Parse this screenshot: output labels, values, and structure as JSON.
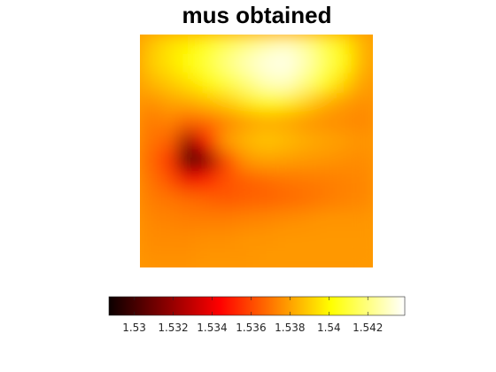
{
  "chart_data": {
    "type": "heatmap",
    "title": "mus obtained",
    "colormap": "hot",
    "axes_visible": false,
    "colorbar": {
      "location": "south",
      "clim": [
        1.5287,
        1.5439
      ],
      "ticks": [
        1.53,
        1.532,
        1.534,
        1.536,
        1.538,
        1.54,
        1.542
      ],
      "tick_labels": [
        "1.53",
        "1.532",
        "1.534",
        "1.536",
        "1.538",
        "1.54",
        "1.542"
      ]
    },
    "grid_size": [
      12,
      12
    ],
    "values": [
      [
        1.5387,
        1.5394,
        1.5398,
        1.5406,
        1.5414,
        1.542,
        1.5426,
        1.543,
        1.5424,
        1.5412,
        1.5398,
        1.5384
      ],
      [
        1.5389,
        1.5395,
        1.5401,
        1.541,
        1.542,
        1.5428,
        1.5434,
        1.5436,
        1.5428,
        1.5415,
        1.54,
        1.5384
      ],
      [
        1.5384,
        1.5389,
        1.5394,
        1.54,
        1.541,
        1.5419,
        1.5428,
        1.543,
        1.542,
        1.5406,
        1.5392,
        1.538
      ],
      [
        1.5376,
        1.538,
        1.5382,
        1.5386,
        1.539,
        1.5396,
        1.54,
        1.5398,
        1.5392,
        1.5384,
        1.5379,
        1.5376
      ],
      [
        1.5371,
        1.5373,
        1.5366,
        1.5368,
        1.5374,
        1.5379,
        1.5382,
        1.5381,
        1.5378,
        1.5376,
        1.5375,
        1.5374
      ],
      [
        1.537,
        1.5366,
        1.532,
        1.535,
        1.5379,
        1.5385,
        1.5388,
        1.5386,
        1.5383,
        1.5381,
        1.5379,
        1.5377
      ],
      [
        1.5368,
        1.5356,
        1.5292,
        1.5316,
        1.536,
        1.5377,
        1.538,
        1.5379,
        1.5378,
        1.5377,
        1.5376,
        1.5375
      ],
      [
        1.537,
        1.5362,
        1.5341,
        1.5352,
        1.5362,
        1.5365,
        1.5368,
        1.537,
        1.5371,
        1.5372,
        1.5373,
        1.5374
      ],
      [
        1.5372,
        1.537,
        1.5368,
        1.5366,
        1.5364,
        1.5365,
        1.5366,
        1.5367,
        1.5369,
        1.5371,
        1.5373,
        1.5374
      ],
      [
        1.5374,
        1.5373,
        1.5372,
        1.5372,
        1.5372,
        1.5373,
        1.5374,
        1.5375,
        1.5376,
        1.5377,
        1.5377,
        1.5377
      ],
      [
        1.5375,
        1.5375,
        1.5375,
        1.5376,
        1.5376,
        1.5377,
        1.5377,
        1.5378,
        1.5378,
        1.5378,
        1.5378,
        1.5378
      ],
      [
        1.5376,
        1.5376,
        1.5376,
        1.5377,
        1.5377,
        1.5377,
        1.5378,
        1.5378,
        1.5378,
        1.5378,
        1.5378,
        1.5378
      ]
    ]
  }
}
